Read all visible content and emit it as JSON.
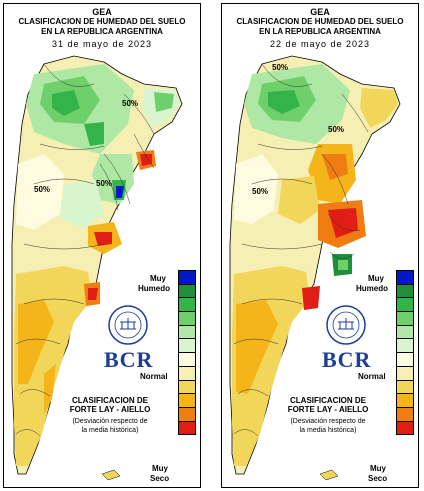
{
  "panels": [
    {
      "org": "GEA",
      "title_line1": "CLASIFICACION DE HUMEDAD DEL SUELO",
      "title_line2": "EN LA REPUBLICA ARGENTINA",
      "date": "31 de mayo de 2023",
      "contour_labels": [
        "50%",
        "50%",
        "50%"
      ]
    },
    {
      "org": "GEA",
      "title_line1": "CLASIFICACION DE HUMEDAD DEL SUELO",
      "title_line2": "EN LA REPUBLICA ARGENTINA",
      "date": "22 de mayo de 2023",
      "contour_labels": [
        "50%",
        "50%",
        "50%"
      ]
    }
  ],
  "legend": {
    "top_label_1": "Muy",
    "top_label_2": "Humedo",
    "normal_label": "Normal",
    "bottom_label_1": "Muy",
    "bottom_label_2": "Seco",
    "colors": [
      "#0018c8",
      "#1f8f3a",
      "#34b34a",
      "#6fd06b",
      "#aee8a4",
      "#d8f5cf",
      "#fffbe1",
      "#f6efb4",
      "#f2d65a",
      "#f3b51a",
      "#ef7d12",
      "#e11e16"
    ]
  },
  "logo": {
    "bcr": "BCR",
    "seal_text": "BOLSA DE COMERCIO DE ROSARIO"
  },
  "classification": {
    "line1": "CLASIFICACION DE",
    "line2": "FORTE LAY - AIELLO",
    "note1": "(Desviación respecto de",
    "note2": "la media histórica)"
  }
}
